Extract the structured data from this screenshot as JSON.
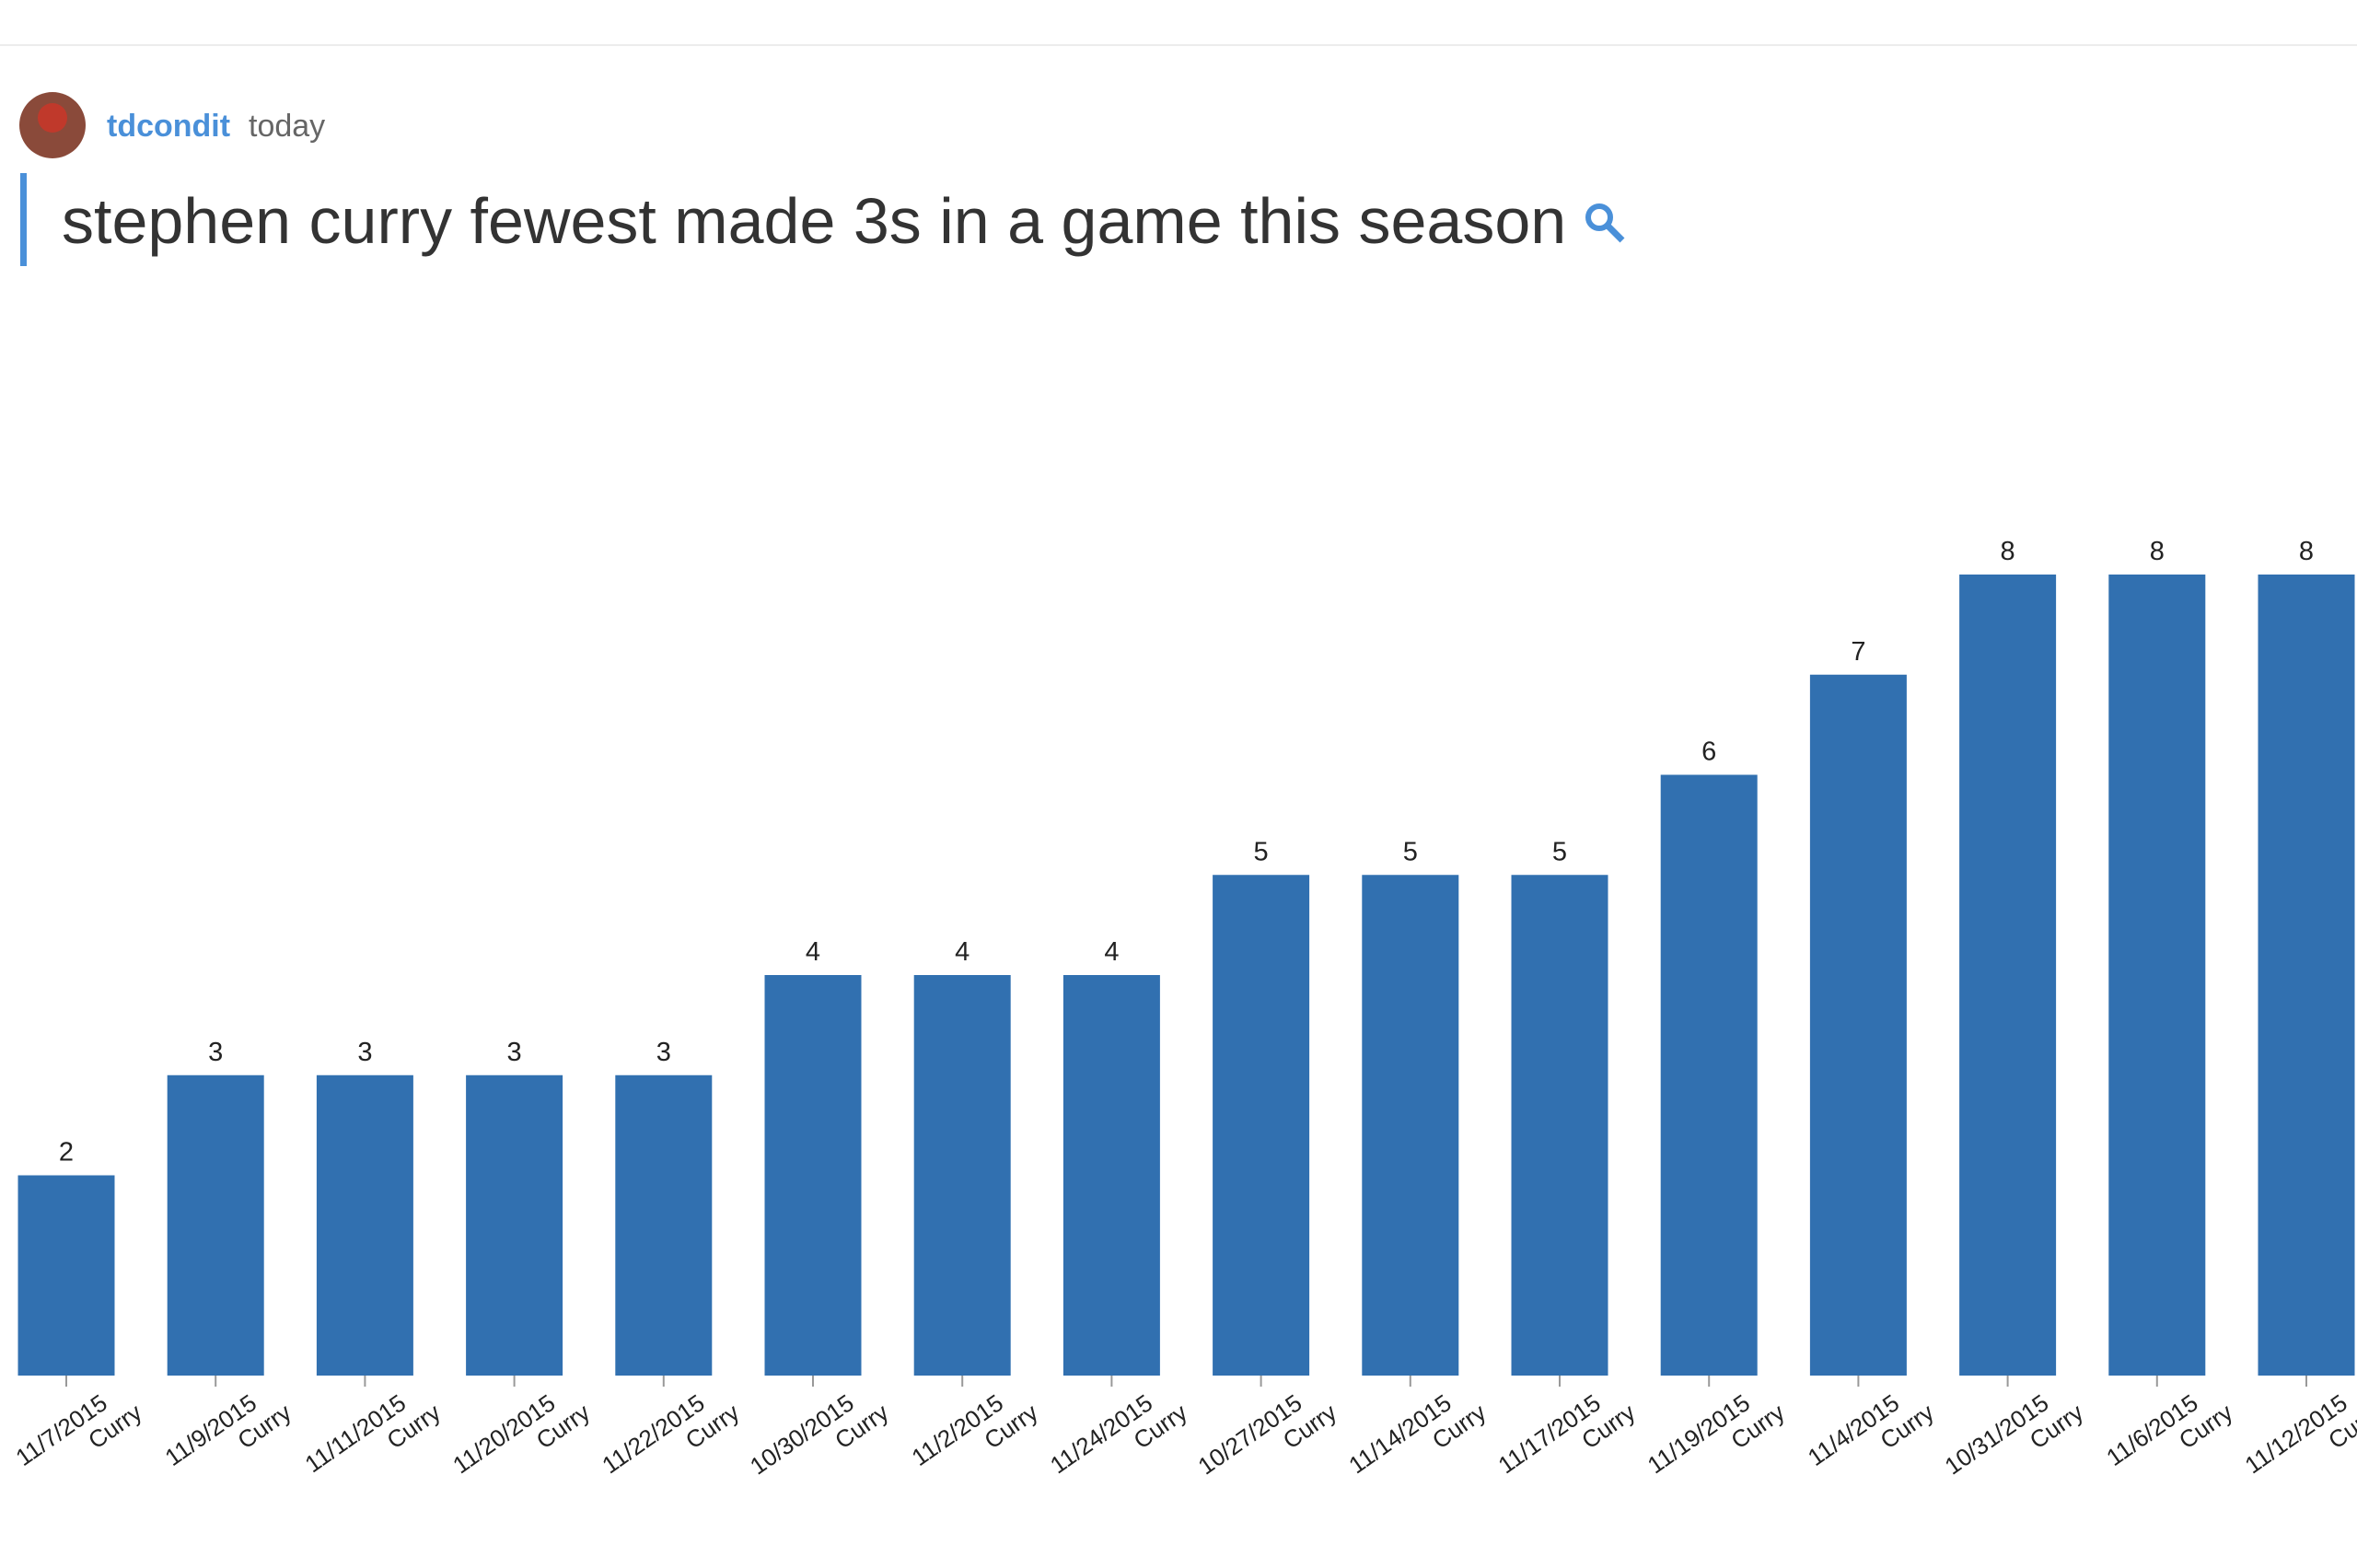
{
  "header": {
    "user": "tdcondit",
    "time": "today",
    "query": "stephen curry fewest made 3s in a game this season"
  },
  "chart_data": {
    "type": "bar",
    "color": "#3170b0",
    "categories": [
      [
        "11/7/2015",
        "Curry"
      ],
      [
        "11/9/2015",
        "Curry"
      ],
      [
        "11/11/2015",
        "Curry"
      ],
      [
        "11/20/2015",
        "Curry"
      ],
      [
        "11/22/2015",
        "Curry"
      ],
      [
        "10/30/2015",
        "Curry"
      ],
      [
        "11/2/2015",
        "Curry"
      ],
      [
        "11/24/2015",
        "Curry"
      ],
      [
        "10/27/2015",
        "Curry"
      ],
      [
        "11/14/2015",
        "Curry"
      ],
      [
        "11/17/2015",
        "Curry"
      ],
      [
        "11/19/2015",
        "Curry"
      ],
      [
        "11/4/2015",
        "Curry"
      ],
      [
        "10/31/2015",
        "Curry"
      ],
      [
        "11/6/2015",
        "Curry"
      ],
      [
        "11/12/2015",
        "Curry"
      ]
    ],
    "values": [
      2,
      3,
      3,
      3,
      3,
      4,
      4,
      4,
      5,
      5,
      5,
      6,
      7,
      8,
      8,
      8
    ],
    "ylim": [
      0,
      8
    ]
  }
}
